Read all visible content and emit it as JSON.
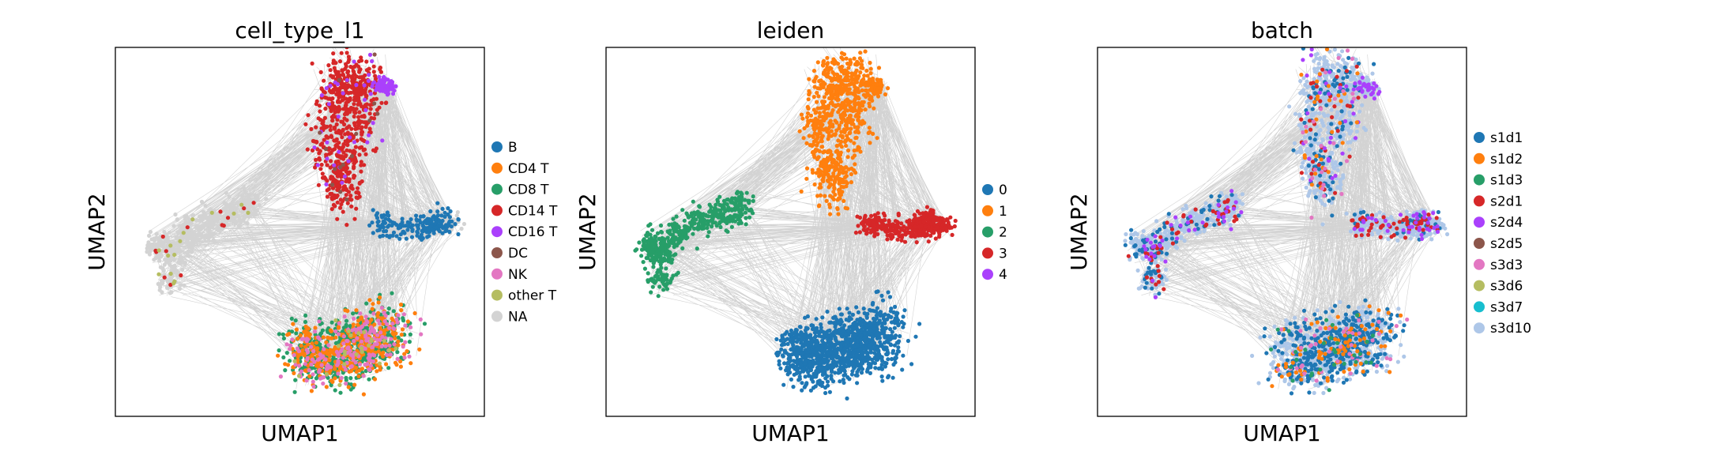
{
  "chart_data": [
    {
      "type": "scatter",
      "title": "cell_type_l1",
      "xlabel": "UMAP1",
      "ylabel": "UMAP2",
      "legend_placement": "right",
      "grid": false,
      "edge_color": "#808080",
      "categories": [
        {
          "name": "B",
          "color": "#1f77b4"
        },
        {
          "name": "CD4 T",
          "color": "#ff7f0e"
        },
        {
          "name": "CD8 T",
          "color": "#279e68"
        },
        {
          "name": "CD14 T",
          "color": "#d62728"
        },
        {
          "name": "CD16 T",
          "color": "#aa40fc"
        },
        {
          "name": "DC",
          "color": "#8c564b"
        },
        {
          "name": "NK",
          "color": "#e377c2"
        },
        {
          "name": "other T",
          "color": "#b5bd61"
        },
        {
          "name": "NA",
          "color": "#d3d3d3"
        }
      ]
    },
    {
      "type": "scatter",
      "title": "leiden",
      "xlabel": "UMAP1",
      "ylabel": "UMAP2",
      "legend_placement": "right",
      "grid": false,
      "edge_color": "#808080",
      "categories": [
        {
          "name": "0",
          "color": "#1f77b4"
        },
        {
          "name": "1",
          "color": "#ff7f0e"
        },
        {
          "name": "2",
          "color": "#279e68"
        },
        {
          "name": "3",
          "color": "#d62728"
        },
        {
          "name": "4",
          "color": "#aa40fc"
        }
      ]
    },
    {
      "type": "scatter",
      "title": "batch",
      "xlabel": "UMAP1",
      "ylabel": "UMAP2",
      "legend_placement": "right",
      "grid": false,
      "edge_color": "#808080",
      "categories": [
        {
          "name": "s1d1",
          "color": "#1f77b4"
        },
        {
          "name": "s1d2",
          "color": "#ff7f0e"
        },
        {
          "name": "s1d3",
          "color": "#279e68"
        },
        {
          "name": "s2d1",
          "color": "#d62728"
        },
        {
          "name": "s2d4",
          "color": "#aa40fc"
        },
        {
          "name": "s2d5",
          "color": "#8c564b"
        },
        {
          "name": "s3d3",
          "color": "#e377c2"
        },
        {
          "name": "s3d6",
          "color": "#b5bd61"
        },
        {
          "name": "s3d7",
          "color": "#17becf"
        },
        {
          "name": "s3d10",
          "color": "#aec7e8"
        }
      ]
    }
  ]
}
